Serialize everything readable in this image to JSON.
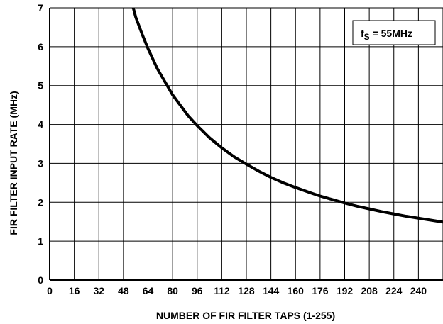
{
  "chart_data": {
    "type": "line",
    "title": "",
    "xlabel": "NUMBER OF FIR FILTER TAPS (1-255)",
    "ylabel": "FIR FILTER INPUT RATE (MHz)",
    "xlim": [
      0,
      256
    ],
    "ylim": [
      0,
      7
    ],
    "x_ticks": [
      "0",
      "16",
      "32",
      "48",
      "64",
      "80",
      "96",
      "112",
      "128",
      "144",
      "160",
      "176",
      "192",
      "208",
      "224",
      "240"
    ],
    "y_ticks": [
      "0",
      "1",
      "2",
      "3",
      "4",
      "5",
      "6",
      "7"
    ],
    "grid": true,
    "annotation": {
      "f": "f",
      "sub": "S",
      "rest": " = 55MHz"
    },
    "series": [
      {
        "x": [
          54.4,
          56,
          60,
          64,
          70,
          80,
          90,
          96,
          104,
          112,
          120,
          128,
          136,
          144,
          152,
          160,
          170,
          176,
          184,
          192,
          200,
          208,
          216,
          224,
          232,
          240,
          248,
          256
        ],
        "y": [
          7.0,
          6.76,
          6.34,
          5.95,
          5.44,
          4.76,
          4.23,
          3.97,
          3.66,
          3.4,
          3.17,
          2.98,
          2.8,
          2.64,
          2.5,
          2.38,
          2.24,
          2.16,
          2.07,
          1.98,
          1.9,
          1.83,
          1.76,
          1.7,
          1.64,
          1.59,
          1.54,
          1.49
        ]
      }
    ],
    "line_color": "#000000"
  }
}
